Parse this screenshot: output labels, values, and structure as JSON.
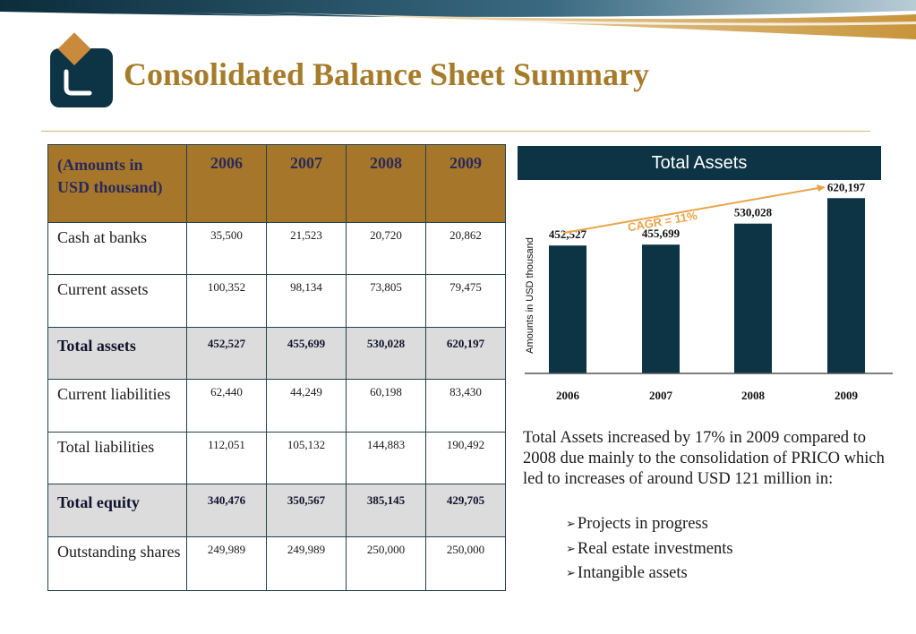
{
  "title": "Consolidated Balance Sheet Summary",
  "table": {
    "header": [
      "(Amounts in USD thousand)",
      "2006",
      "2007",
      "2008",
      "2009"
    ],
    "rows": [
      {
        "label": "Cash at banks",
        "values": [
          "35,500",
          "21,523",
          "20,720",
          "20,862"
        ],
        "highlight": false
      },
      {
        "label": "Current assets",
        "values": [
          "100,352",
          "98,134",
          "73,805",
          "79,475"
        ],
        "highlight": false
      },
      {
        "label": "Total assets",
        "values": [
          "452,527",
          "455,699",
          "530,028",
          "620,197"
        ],
        "highlight": true
      },
      {
        "label": "Current liabilities",
        "values": [
          "62,440",
          "44,249",
          "60,198",
          "83,430"
        ],
        "highlight": false
      },
      {
        "label": "Total liabilities",
        "values": [
          "112,051",
          "105,132",
          "144,883",
          "190,492"
        ],
        "highlight": false
      },
      {
        "label": "Total equity",
        "values": [
          "340,476",
          "350,567",
          "385,145",
          "429,705"
        ],
        "highlight": true
      },
      {
        "label": "Outstanding shares",
        "values": [
          "249,989",
          "249,989",
          "250,000",
          "250,000"
        ],
        "highlight": false
      }
    ]
  },
  "chart_data": {
    "type": "bar",
    "title": "Total Assets",
    "categories": [
      "2006",
      "2007",
      "2008",
      "2009"
    ],
    "values": [
      452527,
      455699,
      530028,
      620197
    ],
    "data_labels": [
      "452,527",
      "455,699",
      "530,028",
      "620,197"
    ],
    "ylabel": "Amounts in USD thousand",
    "xlabel": "",
    "ylim": [
      0,
      640000
    ],
    "grid": false,
    "annotation": "CAGR = 11%",
    "bar_color": "#0c3444"
  },
  "description": "Total Assets increased by 17% in 2009 compared to 2008 due mainly to the consolidation of PRICO which led to increases of around USD 121 million in:",
  "bullets": [
    "Projects in progress",
    "Real estate investments",
    "Intangible assets"
  ],
  "colors": {
    "accent": "#a67c2b",
    "navy": "#0c3444",
    "gold_header": "#a6772a"
  }
}
